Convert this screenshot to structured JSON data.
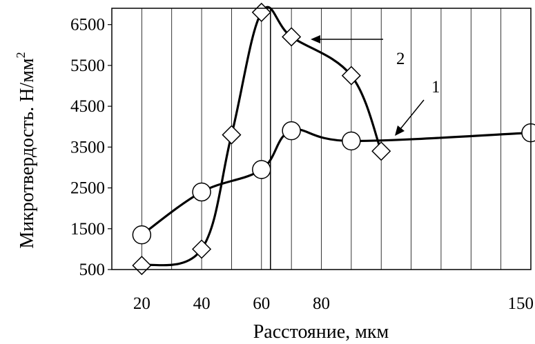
{
  "chart_data": {
    "type": "line",
    "title": "",
    "xlabel": "Расстояние, мкм",
    "ylabel": "Микротвердость. Н/мм",
    "ylabel_superscript": "2",
    "ylim": [
      500,
      6900
    ],
    "xlim": [
      10,
      150
    ],
    "yticks": [
      500,
      1500,
      2500,
      3500,
      4500,
      5500,
      6500
    ],
    "xtick_labels": [
      {
        "x": 20,
        "label": "20"
      },
      {
        "x": 40,
        "label": "40"
      },
      {
        "x": 60,
        "label": "60"
      },
      {
        "x": 80,
        "label": "80"
      },
      {
        "x": 150,
        "label": "150"
      }
    ],
    "grid": {
      "vertical_every": 10,
      "horizontal": false
    },
    "reference_line_x": 63,
    "series": [
      {
        "name": "1",
        "marker": "circle",
        "points": [
          [
            20,
            1350
          ],
          [
            40,
            2400
          ],
          [
            60,
            2950
          ],
          [
            70,
            3900
          ],
          [
            90,
            3650
          ],
          [
            150,
            3850
          ]
        ]
      },
      {
        "name": "2",
        "marker": "diamond",
        "points": [
          [
            20,
            600
          ],
          [
            40,
            1000
          ],
          [
            50,
            3800
          ],
          [
            60,
            6800
          ],
          [
            70,
            6200
          ],
          [
            90,
            5250
          ],
          [
            100,
            3400
          ]
        ]
      }
    ]
  }
}
